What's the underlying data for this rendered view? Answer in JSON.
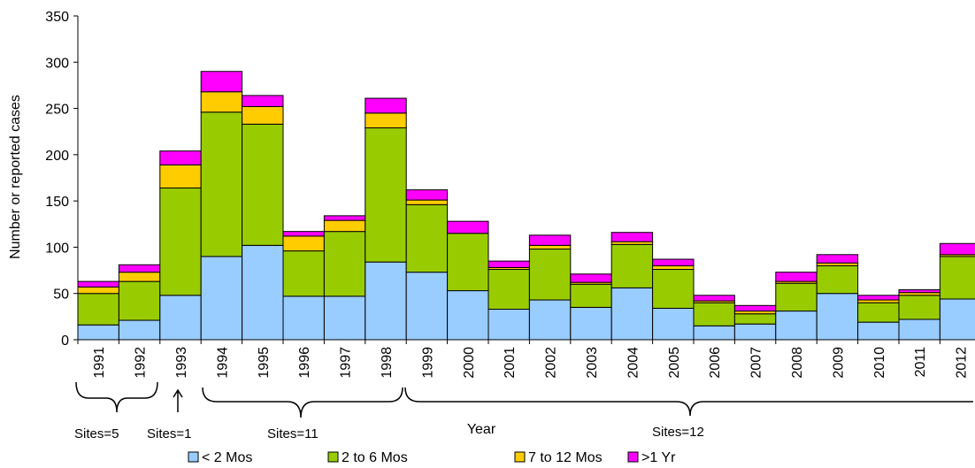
{
  "chart_data": {
    "type": "stacked_bar",
    "y_label": "Number or reported cases",
    "x_label": "Year",
    "categories": [
      "1991",
      "1992",
      "1993",
      "1994",
      "1995",
      "1996",
      "1997",
      "1998",
      "1999",
      "2000",
      "2001",
      "2002",
      "2003",
      "2004",
      "2005",
      "2006",
      "2007",
      "2008",
      "2009",
      "2010",
      "2011",
      "2012"
    ],
    "series": [
      {
        "name": "< 2 Mos",
        "color": "#99ccff",
        "values": [
          16,
          21,
          48,
          90,
          102,
          47,
          47,
          84,
          73,
          53,
          33,
          43,
          35,
          56,
          34,
          15,
          17,
          31,
          50,
          19,
          22,
          44
        ]
      },
      {
        "name": "2 to 6 Mos",
        "color": "#99cc00",
        "values": [
          34,
          42,
          116,
          156,
          131,
          49,
          70,
          145,
          73,
          62,
          43,
          55,
          25,
          47,
          42,
          25,
          11,
          30,
          30,
          21,
          26,
          46
        ]
      },
      {
        "name": "7 to 12 Mos",
        "color": "#ffcc00",
        "values": [
          7,
          10,
          25,
          22,
          19,
          16,
          12,
          16,
          5,
          0,
          2,
          4,
          2,
          3,
          4,
          2,
          3,
          2,
          3,
          3,
          3,
          2
        ]
      },
      {
        "name": ">1 Yr",
        "color": "#ff00ff",
        "values": [
          6,
          8,
          15,
          22,
          12,
          5,
          5,
          16,
          11,
          13,
          7,
          11,
          9,
          10,
          7,
          6,
          6,
          10,
          9,
          5,
          3,
          12
        ]
      }
    ],
    "ylim": [
      0,
      350
    ],
    "yticks": [
      0,
      50,
      100,
      150,
      200,
      250,
      300,
      350
    ],
    "annotations": [
      "Sites=5",
      "Sites=1",
      "Sites=11",
      "Sites=12"
    ]
  }
}
